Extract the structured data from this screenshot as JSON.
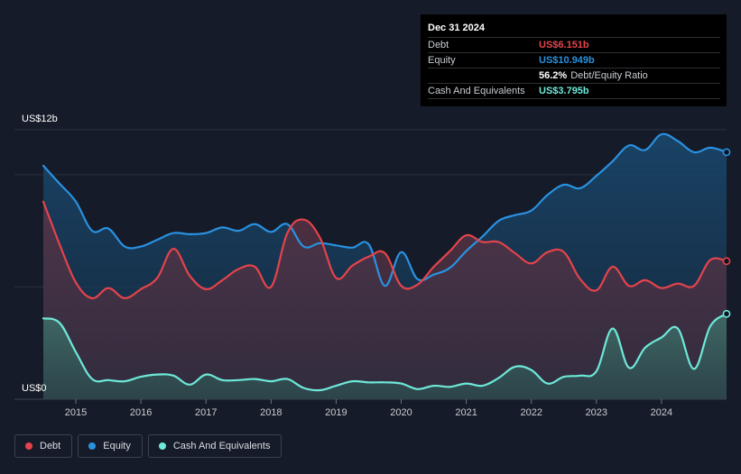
{
  "tooltip": {
    "date": "Dec 31 2024",
    "debt_label": "Debt",
    "debt_value": "US$6.151b",
    "equity_label": "Equity",
    "equity_value": "US$10.949b",
    "ratio_value": "56.2%",
    "ratio_label": "Debt/Equity Ratio",
    "cash_label": "Cash And Equivalents",
    "cash_value": "US$3.795b"
  },
  "colors": {
    "debt": "#e5434b",
    "equity": "#2a91e0",
    "cash": "#6ee8d8",
    "background": "#151b28"
  },
  "legend": [
    {
      "label": "Debt",
      "color": "#e5434b"
    },
    {
      "label": "Equity",
      "color": "#2a91e0"
    },
    {
      "label": "Cash And Equivalents",
      "color": "#6ee8d8"
    }
  ],
  "chart_data": {
    "type": "area",
    "y_top_label": "US$12b",
    "y_bottom_label": "US$0",
    "ylim": [
      0,
      12
    ],
    "xlim": [
      2014.5,
      2025.0
    ],
    "x_ticks": [
      "2015",
      "2016",
      "2017",
      "2018",
      "2019",
      "2020",
      "2021",
      "2022",
      "2023",
      "2024"
    ],
    "legend_position": "bottom-left",
    "series": [
      {
        "name": "Equity",
        "color": "#2a91e0",
        "x": [
          2014.5,
          2014.75,
          2015.0,
          2015.25,
          2015.5,
          2015.75,
          2016.0,
          2016.25,
          2016.5,
          2016.75,
          2017.0,
          2017.25,
          2017.5,
          2017.75,
          2018.0,
          2018.25,
          2018.5,
          2018.75,
          2019.0,
          2019.25,
          2019.5,
          2019.75,
          2020.0,
          2020.25,
          2020.5,
          2020.75,
          2021.0,
          2021.25,
          2021.5,
          2021.75,
          2022.0,
          2022.25,
          2022.5,
          2022.75,
          2023.0,
          2023.25,
          2023.5,
          2023.75,
          2024.0,
          2024.25,
          2024.5,
          2024.75,
          2025.0
        ],
        "values": [
          10.4,
          9.6,
          8.8,
          7.5,
          7.6,
          6.8,
          6.8,
          7.1,
          7.4,
          7.35,
          7.4,
          7.65,
          7.5,
          7.8,
          7.45,
          7.8,
          6.8,
          6.95,
          6.85,
          6.75,
          6.9,
          5.05,
          6.55,
          5.35,
          5.55,
          5.85,
          6.6,
          7.25,
          7.95,
          8.2,
          8.4,
          9.1,
          9.55,
          9.4,
          9.95,
          10.6,
          11.3,
          11.1,
          11.8,
          11.5,
          11.0,
          11.2,
          11.0
        ]
      },
      {
        "name": "Debt",
        "color": "#e5434b",
        "x": [
          2014.5,
          2014.75,
          2015.0,
          2015.25,
          2015.5,
          2015.75,
          2016.0,
          2016.25,
          2016.5,
          2016.75,
          2017.0,
          2017.25,
          2017.5,
          2017.75,
          2018.0,
          2018.25,
          2018.5,
          2018.75,
          2019.0,
          2019.25,
          2019.5,
          2019.75,
          2020.0,
          2020.25,
          2020.5,
          2020.75,
          2021.0,
          2021.25,
          2021.5,
          2021.75,
          2022.0,
          2022.25,
          2022.5,
          2022.75,
          2023.0,
          2023.25,
          2023.5,
          2023.75,
          2024.0,
          2024.25,
          2024.5,
          2024.75,
          2025.0
        ],
        "values": [
          8.8,
          6.9,
          5.2,
          4.5,
          4.95,
          4.5,
          4.9,
          5.4,
          6.7,
          5.5,
          4.9,
          5.3,
          5.8,
          5.9,
          5.0,
          7.4,
          8.0,
          7.2,
          5.4,
          5.95,
          6.35,
          6.5,
          5.05,
          5.1,
          5.9,
          6.6,
          7.3,
          7.0,
          7.0,
          6.5,
          6.05,
          6.55,
          6.55,
          5.35,
          4.85,
          5.9,
          5.05,
          5.3,
          4.95,
          5.15,
          5.05,
          6.2,
          6.15
        ]
      },
      {
        "name": "Cash And Equivalents",
        "color": "#6ee8d8",
        "x": [
          2014.5,
          2014.75,
          2015.0,
          2015.25,
          2015.5,
          2015.75,
          2016.0,
          2016.25,
          2016.5,
          2016.75,
          2017.0,
          2017.25,
          2017.5,
          2017.75,
          2018.0,
          2018.25,
          2018.5,
          2018.75,
          2019.0,
          2019.25,
          2019.5,
          2019.75,
          2020.0,
          2020.25,
          2020.5,
          2020.75,
          2021.0,
          2021.25,
          2021.5,
          2021.75,
          2022.0,
          2022.25,
          2022.5,
          2022.75,
          2023.0,
          2023.25,
          2023.5,
          2023.75,
          2024.0,
          2024.25,
          2024.5,
          2024.75,
          2025.0
        ],
        "values": [
          3.6,
          3.4,
          2.1,
          0.9,
          0.85,
          0.8,
          1.0,
          1.1,
          1.05,
          0.65,
          1.1,
          0.85,
          0.85,
          0.9,
          0.8,
          0.9,
          0.5,
          0.4,
          0.6,
          0.8,
          0.75,
          0.75,
          0.7,
          0.45,
          0.6,
          0.55,
          0.7,
          0.6,
          0.95,
          1.45,
          1.3,
          0.7,
          1.0,
          1.05,
          1.25,
          3.15,
          1.4,
          2.3,
          2.75,
          3.15,
          1.35,
          3.25,
          3.8
        ]
      }
    ]
  }
}
